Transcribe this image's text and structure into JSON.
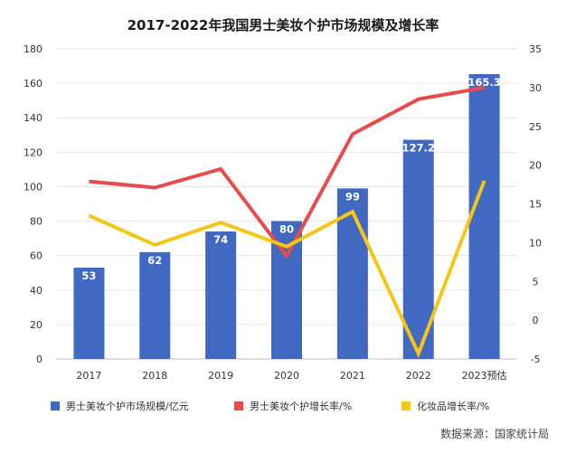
{
  "chart_data": {
    "type": "bar",
    "title": "2017-2022年我国男士美妆个护市场规模及增长率",
    "categories": [
      "2017",
      "2018",
      "2019",
      "2020",
      "2021",
      "2022",
      "2023预估"
    ],
    "series": [
      {
        "name": "男士美妆个护市场规模/亿元",
        "type": "bar",
        "axis": "left",
        "color": "#4169C1",
        "values": [
          53,
          62,
          74,
          80,
          99,
          127.2,
          165.3
        ],
        "labels": [
          "53",
          "62",
          "74",
          "80",
          "99",
          "127.2",
          "165.3"
        ]
      },
      {
        "name": "男士美妆个护增长率/%",
        "type": "line",
        "axis": "right",
        "color": "#E84B4B",
        "values": [
          17.9,
          17.1,
          19.5,
          8.3,
          24,
          28.5,
          30
        ]
      },
      {
        "name": "化妆品增长率/%",
        "type": "line",
        "axis": "right",
        "color": "#F5C518",
        "values": [
          13.5,
          9.7,
          12.6,
          9.5,
          14,
          -4.3,
          18
        ]
      }
    ],
    "y_left": {
      "min": 0,
      "max": 180,
      "step": 20,
      "ticks": [
        "0",
        "20",
        "40",
        "60",
        "80",
        "100",
        "120",
        "140",
        "160",
        "180"
      ]
    },
    "y_right": {
      "min": -5,
      "max": 35,
      "step": 5,
      "ticks": [
        "-5",
        "0",
        "5",
        "10",
        "15",
        "20",
        "25",
        "30",
        "35"
      ]
    },
    "grid": true,
    "legend_position": "bottom"
  },
  "source": "数据来源：国家统计局"
}
